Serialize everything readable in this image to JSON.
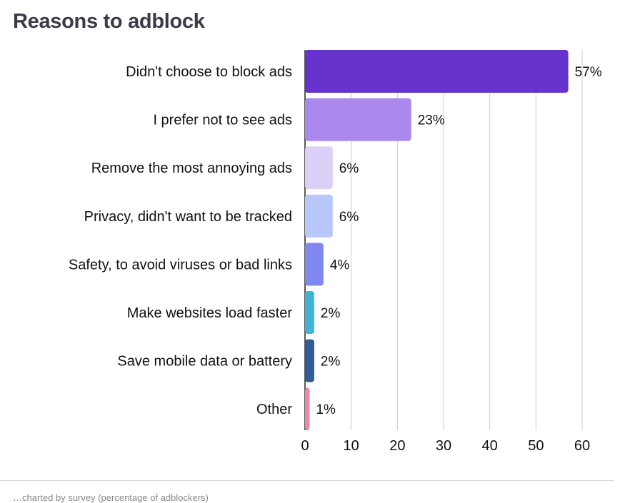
{
  "header": {
    "title": "Reasons to adblock"
  },
  "footer": {
    "note": "…charted by survey (percentage of adblockers)"
  },
  "chart_data": {
    "type": "bar",
    "orientation": "horizontal",
    "title": "Reasons to adblock",
    "xlabel": "",
    "ylabel": "",
    "xlim": [
      0,
      60
    ],
    "x_ticks": [
      0,
      10,
      20,
      30,
      40,
      50,
      60
    ],
    "grid": "vertical",
    "categories": [
      "Didn't choose to block ads",
      "I prefer not to see ads",
      "Remove the most annoying ads",
      "Privacy, didn't want to be tracked",
      "Safety, to avoid viruses or bad links",
      "Make websites load faster",
      "Save mobile data or battery",
      "Other"
    ],
    "values": [
      57,
      23,
      6,
      6,
      4,
      2,
      2,
      1
    ],
    "value_labels": [
      "57%",
      "23%",
      "6%",
      "6%",
      "4%",
      "2%",
      "2%",
      "1%"
    ],
    "colors": [
      "#6633cc",
      "#aa88ee",
      "#ddd0f7",
      "#b8c8fb",
      "#8088ee",
      "#3fb5d4",
      "#2d5c96",
      "#ee88aa"
    ]
  }
}
